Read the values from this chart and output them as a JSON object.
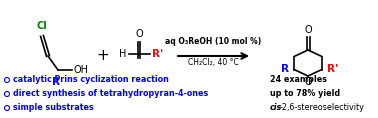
{
  "bg_color": "#ffffff",
  "bullet_color": "#0000ff",
  "bullet_texts": [
    "catalytic Prins cyclization reaction",
    "direct synthesis of tetrahydropyran-4-ones",
    "simple substrates"
  ],
  "right_texts": [
    "24 examples",
    "up to 78% yield",
    "cis-2,6-stereoselectivity"
  ],
  "arrow_text_top": "aq O₃ReOH (10 mol %)",
  "arrow_text_bot": "CH₂Cl₂, 40 °C",
  "cl_color": "#008000",
  "r_color": "#0000ff",
  "rprime_color": "#ff0000",
  "black": "#000000"
}
